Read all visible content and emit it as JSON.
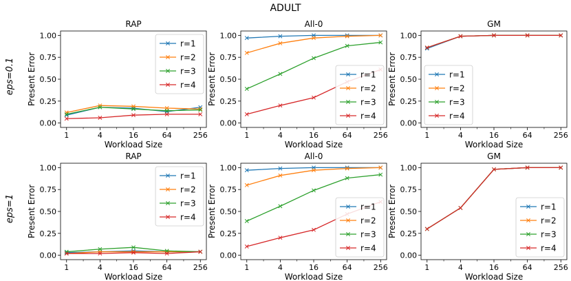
{
  "figure_title": "ADULT",
  "row_labels": [
    "eps=0.1",
    "eps=1"
  ],
  "colors": {
    "r=1": "#1f77b4",
    "r=2": "#ff7f0e",
    "r=3": "#2ca02c",
    "r=4": "#d62728"
  },
  "chart_data": [
    {
      "type": "line",
      "title": "RAP",
      "row_label": "eps=0.1",
      "xlabel": "Workload Size",
      "ylabel": "Present Error",
      "x": [
        1,
        4,
        16,
        64,
        256
      ],
      "xscale": "log2",
      "xticks": [
        "1",
        "4",
        "16",
        "64",
        "256"
      ],
      "ylim": [
        -0.05,
        1.05
      ],
      "yticks": [
        "0.00",
        "0.25",
        "0.50",
        "0.75",
        "1.00"
      ],
      "grid": false,
      "legend": "top-right",
      "marker": "x",
      "series": [
        {
          "name": "r=1",
          "values": [
            0.09,
            0.18,
            0.17,
            0.13,
            0.18
          ]
        },
        {
          "name": "r=2",
          "values": [
            0.12,
            0.2,
            0.19,
            0.17,
            0.16
          ]
        },
        {
          "name": "r=3",
          "values": [
            0.1,
            0.18,
            0.16,
            0.14,
            0.15
          ]
        },
        {
          "name": "r=4",
          "values": [
            0.05,
            0.06,
            0.09,
            0.1,
            0.1
          ]
        }
      ]
    },
    {
      "type": "line",
      "title": "All-0",
      "row_label": "eps=0.1",
      "xlabel": "Workload Size",
      "ylabel": "Present Error",
      "x": [
        1,
        4,
        16,
        64,
        256
      ],
      "xscale": "log2",
      "xticks": [
        "1",
        "4",
        "16",
        "64",
        "256"
      ],
      "ylim": [
        -0.05,
        1.05
      ],
      "yticks": [
        "0.00",
        "0.25",
        "0.50",
        "0.75",
        "1.00"
      ],
      "grid": false,
      "legend": "bottom-right",
      "marker": "x",
      "series": [
        {
          "name": "r=1",
          "values": [
            0.97,
            0.99,
            1.0,
            1.0,
            1.0
          ]
        },
        {
          "name": "r=2",
          "values": [
            0.8,
            0.91,
            0.97,
            0.99,
            1.0
          ]
        },
        {
          "name": "r=3",
          "values": [
            0.39,
            0.56,
            0.74,
            0.88,
            0.92
          ]
        },
        {
          "name": "r=4",
          "values": [
            0.1,
            0.2,
            0.29,
            0.47,
            0.61
          ]
        }
      ]
    },
    {
      "type": "line",
      "title": "GM",
      "row_label": "eps=0.1",
      "xlabel": "Workload Size",
      "ylabel": "Present Error",
      "x": [
        1,
        4,
        16,
        64,
        256
      ],
      "xscale": "log2",
      "xticks": [
        "1",
        "4",
        "16",
        "64",
        "256"
      ],
      "ylim": [
        -0.05,
        1.05
      ],
      "yticks": [
        "0.00",
        "0.25",
        "0.50",
        "0.75",
        "1.00"
      ],
      "grid": false,
      "legend": "bottom-left",
      "marker": "x",
      "series": [
        {
          "name": "r=1",
          "values": [
            0.85,
            0.99,
            1.0,
            1.0,
            1.0
          ]
        },
        {
          "name": "r=2",
          "values": [
            0.86,
            0.99,
            1.0,
            1.0,
            1.0
          ]
        },
        {
          "name": "r=3",
          "values": [
            0.86,
            0.99,
            1.0,
            1.0,
            1.0
          ]
        },
        {
          "name": "r=4",
          "values": [
            0.86,
            0.99,
            1.0,
            1.0,
            1.0
          ]
        }
      ]
    },
    {
      "type": "line",
      "title": "RAP",
      "row_label": "eps=1",
      "xlabel": "Workload Size",
      "ylabel": "Present Error",
      "x": [
        1,
        4,
        16,
        64,
        256
      ],
      "xscale": "log2",
      "xticks": [
        "1",
        "4",
        "16",
        "64",
        "256"
      ],
      "ylim": [
        -0.05,
        1.05
      ],
      "yticks": [
        "0.00",
        "0.25",
        "0.50",
        "0.75",
        "1.00"
      ],
      "grid": false,
      "legend": "top-right",
      "marker": "x",
      "series": [
        {
          "name": "r=1",
          "values": [
            0.03,
            0.04,
            0.05,
            0.04,
            0.04
          ]
        },
        {
          "name": "r=2",
          "values": [
            0.02,
            0.04,
            0.04,
            0.04,
            0.04
          ]
        },
        {
          "name": "r=3",
          "values": [
            0.04,
            0.07,
            0.09,
            0.05,
            0.04
          ]
        },
        {
          "name": "r=4",
          "values": [
            0.02,
            0.02,
            0.03,
            0.02,
            0.04
          ]
        }
      ]
    },
    {
      "type": "line",
      "title": "All-0",
      "row_label": "eps=1",
      "xlabel": "Workload Size",
      "ylabel": "Present Error",
      "x": [
        1,
        4,
        16,
        64,
        256
      ],
      "xscale": "log2",
      "xticks": [
        "1",
        "4",
        "16",
        "64",
        "256"
      ],
      "ylim": [
        -0.05,
        1.05
      ],
      "yticks": [
        "0.00",
        "0.25",
        "0.50",
        "0.75",
        "1.00"
      ],
      "grid": false,
      "legend": "bottom-right",
      "marker": "x",
      "series": [
        {
          "name": "r=1",
          "values": [
            0.97,
            0.99,
            1.0,
            1.0,
            1.0
          ]
        },
        {
          "name": "r=2",
          "values": [
            0.8,
            0.91,
            0.97,
            0.99,
            1.0
          ]
        },
        {
          "name": "r=3",
          "values": [
            0.39,
            0.56,
            0.74,
            0.88,
            0.92
          ]
        },
        {
          "name": "r=4",
          "values": [
            0.1,
            0.2,
            0.29,
            0.47,
            0.61
          ]
        }
      ]
    },
    {
      "type": "line",
      "title": "GM",
      "row_label": "eps=1",
      "xlabel": "Workload Size",
      "ylabel": "Present Error",
      "x": [
        1,
        4,
        16,
        64,
        256
      ],
      "xscale": "log2",
      "xticks": [
        "1",
        "4",
        "16",
        "64",
        "256"
      ],
      "ylim": [
        -0.05,
        1.05
      ],
      "yticks": [
        "0.00",
        "0.25",
        "0.50",
        "0.75",
        "1.00"
      ],
      "grid": false,
      "legend": "bottom-right",
      "marker": "x",
      "series": [
        {
          "name": "r=1",
          "values": [
            0.3,
            0.54,
            0.98,
            1.0,
            1.0
          ]
        },
        {
          "name": "r=2",
          "values": [
            0.3,
            0.54,
            0.98,
            1.0,
            1.0
          ]
        },
        {
          "name": "r=3",
          "values": [
            0.3,
            0.54,
            0.98,
            1.0,
            1.0
          ]
        },
        {
          "name": "r=4",
          "values": [
            0.3,
            0.54,
            0.98,
            1.0,
            1.0
          ]
        }
      ]
    }
  ]
}
